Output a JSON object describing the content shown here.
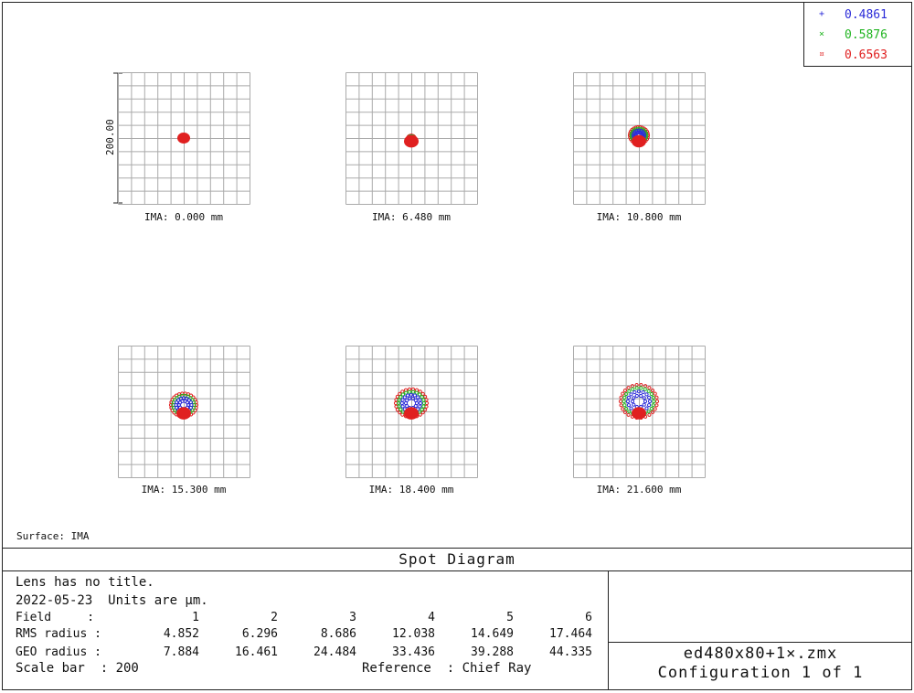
{
  "legend": [
    {
      "symbol": "+",
      "wavelength": "0.4861",
      "color": "#2a2ad8"
    },
    {
      "symbol": "×",
      "wavelength": "0.5876",
      "color": "#22b522"
    },
    {
      "symbol": "¤",
      "wavelength": "0.6563",
      "color": "#e02020"
    }
  ],
  "scale_axis_label": "200.00",
  "plots": [
    {
      "caption": "IMA: 0.000 mm"
    },
    {
      "caption": "IMA: 6.480 mm"
    },
    {
      "caption": "IMA: 10.800 mm"
    },
    {
      "caption": "IMA: 15.300 mm"
    },
    {
      "caption": "IMA: 18.400 mm"
    },
    {
      "caption": "IMA: 21.600 mm"
    }
  ],
  "surface_label": "Surface: IMA",
  "title": "Spot Diagram",
  "info": {
    "line1": "Lens has no title.",
    "line2": "2022-05-23  Units are µm.",
    "field_label": "Field     :",
    "rms_label": "RMS radius :",
    "geo_label": "GEO radius :",
    "fields": [
      "1",
      "2",
      "3",
      "4",
      "5",
      "6"
    ],
    "rms": [
      "4.852",
      "6.296",
      "8.686",
      "12.038",
      "14.649",
      "17.464"
    ],
    "geo": [
      "7.884",
      "16.461",
      "24.484",
      "33.436",
      "39.288",
      "44.335"
    ],
    "scale_bar": "Scale bar  : 200",
    "reference": "Reference  : Chief Ray"
  },
  "file": {
    "name": "ed480x80+1×.zmx",
    "config": "Configuration 1 of 1"
  },
  "colors": {
    "blue": "#2a2ad8",
    "green": "#22b522",
    "red": "#e02020",
    "grid": "#aaaaaa"
  }
}
